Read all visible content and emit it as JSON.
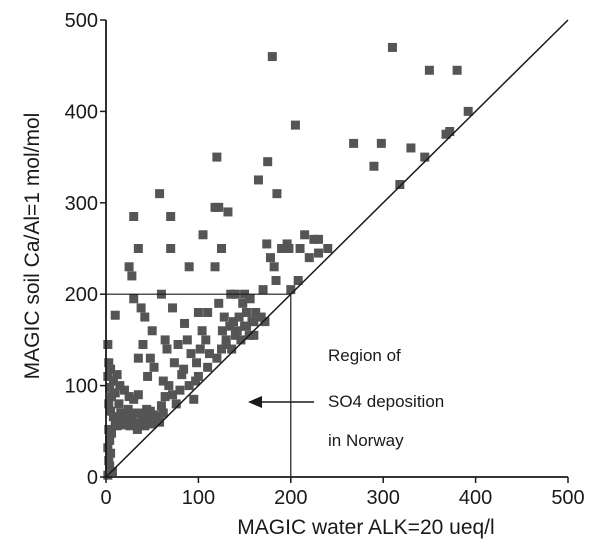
{
  "chart_data": {
    "type": "scatter",
    "xlabel": "MAGIC water ALK=20 ueq/l",
    "ylabel": "MAGIC soil Ca/Al=1 mol/mol",
    "xlim": [
      0,
      500
    ],
    "ylim": [
      0,
      500
    ],
    "xticks": [
      0,
      100,
      200,
      300,
      400,
      500
    ],
    "yticks": [
      0,
      100,
      200,
      300,
      400,
      500
    ],
    "xtick_labels": [
      "0",
      "100",
      "200",
      "300",
      "400",
      "500"
    ],
    "ytick_labels": [
      "0",
      "100",
      "200",
      "300",
      "400",
      "500"
    ],
    "grid": false,
    "legend": "none",
    "reference_line": {
      "type": "1:1",
      "from": [
        0,
        0
      ],
      "to": [
        500,
        500
      ]
    },
    "threshold_lines": {
      "x": 200,
      "y": 200
    },
    "annotation": {
      "lines": [
        "Region of",
        "SO4 deposition",
        "in Norway"
      ],
      "arrow_direction": "left"
    },
    "series": [
      {
        "marker": "square",
        "color": "#555555",
        "points": [
          [
            2,
            145
          ],
          [
            3,
            125
          ],
          [
            5,
            118
          ],
          [
            2,
            110
          ],
          [
            4,
            98
          ],
          [
            6,
            88
          ],
          [
            3,
            80
          ],
          [
            5,
            72
          ],
          [
            8,
            66
          ],
          [
            10,
            60
          ],
          [
            12,
            56
          ],
          [
            3,
            52
          ],
          [
            6,
            48
          ],
          [
            4,
            40
          ],
          [
            2,
            32
          ],
          [
            5,
            26
          ],
          [
            3,
            18
          ],
          [
            4,
            12
          ],
          [
            7,
            6
          ],
          [
            2,
            2
          ],
          [
            10,
            92
          ],
          [
            14,
            80
          ],
          [
            16,
            70
          ],
          [
            18,
            62
          ],
          [
            20,
            58
          ],
          [
            22,
            66
          ],
          [
            24,
            74
          ],
          [
            26,
            56
          ],
          [
            28,
            62
          ],
          [
            30,
            70
          ],
          [
            32,
            58
          ],
          [
            34,
            52
          ],
          [
            38,
            60
          ],
          [
            40,
            68
          ],
          [
            42,
            56
          ],
          [
            45,
            64
          ],
          [
            48,
            72
          ],
          [
            50,
            58
          ],
          [
            55,
            66
          ],
          [
            58,
            60
          ],
          [
            62,
            70
          ],
          [
            15,
            100
          ],
          [
            20,
            95
          ],
          [
            25,
            88
          ],
          [
            30,
            85
          ],
          [
            35,
            90
          ],
          [
            8,
            105
          ],
          [
            12,
            112
          ],
          [
            10,
            177
          ],
          [
            25,
            230
          ],
          [
            28,
            220
          ],
          [
            30,
            195
          ],
          [
            30,
            285
          ],
          [
            35,
            250
          ],
          [
            35,
            130
          ],
          [
            38,
            185
          ],
          [
            40,
            145
          ],
          [
            42,
            175
          ],
          [
            45,
            110
          ],
          [
            48,
            130
          ],
          [
            50,
            160
          ],
          [
            52,
            120
          ],
          [
            58,
            310
          ],
          [
            60,
            200
          ],
          [
            62,
            105
          ],
          [
            64,
            150
          ],
          [
            66,
            140
          ],
          [
            70,
            250
          ],
          [
            70,
            285
          ],
          [
            72,
            185
          ],
          [
            74,
            125
          ],
          [
            78,
            145
          ],
          [
            80,
            95
          ],
          [
            82,
            112
          ],
          [
            85,
            168
          ],
          [
            88,
            150
          ],
          [
            90,
            230
          ],
          [
            92,
            135
          ],
          [
            95,
            85
          ],
          [
            97,
            105
          ],
          [
            98,
            125
          ],
          [
            100,
            180
          ],
          [
            102,
            140
          ],
          [
            104,
            160
          ],
          [
            105,
            265
          ],
          [
            108,
            150
          ],
          [
            110,
            180
          ],
          [
            112,
            135
          ],
          [
            118,
            295
          ],
          [
            118,
            230
          ],
          [
            120,
            350
          ],
          [
            122,
            190
          ],
          [
            122,
            295
          ],
          [
            125,
            140
          ],
          [
            125,
            250
          ],
          [
            126,
            160
          ],
          [
            128,
            175
          ],
          [
            130,
            150
          ],
          [
            132,
            290
          ],
          [
            134,
            165
          ],
          [
            135,
            200
          ],
          [
            136,
            140
          ],
          [
            138,
            170
          ],
          [
            140,
            200
          ],
          [
            142,
            160
          ],
          [
            144,
            175
          ],
          [
            146,
            150
          ],
          [
            148,
            190
          ],
          [
            150,
            165
          ],
          [
            150,
            200
          ],
          [
            152,
            180
          ],
          [
            155,
            155
          ],
          [
            156,
            195
          ],
          [
            158,
            170
          ],
          [
            160,
            155
          ],
          [
            162,
            180
          ],
          [
            165,
            325
          ],
          [
            170,
            205
          ],
          [
            172,
            170
          ],
          [
            174,
            255
          ],
          [
            175,
            345
          ],
          [
            178,
            240
          ],
          [
            180,
            460
          ],
          [
            182,
            230
          ],
          [
            184,
            215
          ],
          [
            185,
            310
          ],
          [
            190,
            250
          ],
          [
            196,
            255
          ],
          [
            198,
            250
          ],
          [
            200,
            205
          ],
          [
            205,
            385
          ],
          [
            208,
            215
          ],
          [
            210,
            250
          ],
          [
            215,
            265
          ],
          [
            220,
            240
          ],
          [
            225,
            260
          ],
          [
            230,
            245
          ],
          [
            230,
            260
          ],
          [
            240,
            250
          ],
          [
            20,
            57
          ],
          [
            22,
            63
          ],
          [
            24,
            60
          ],
          [
            26,
            66
          ],
          [
            28,
            61
          ],
          [
            36,
            70
          ],
          [
            44,
            74
          ],
          [
            52,
            68
          ],
          [
            60,
            78
          ],
          [
            64,
            88
          ],
          [
            68,
            100
          ],
          [
            72,
            90
          ],
          [
            76,
            80
          ],
          [
            84,
            118
          ],
          [
            90,
            100
          ],
          [
            100,
            110
          ],
          [
            110,
            120
          ],
          [
            120,
            130
          ],
          [
            130,
            145
          ],
          [
            140,
            155
          ],
          [
            152,
            165
          ],
          [
            160,
            170
          ],
          [
            168,
            175
          ],
          [
            268,
            365
          ],
          [
            290,
            340
          ],
          [
            298,
            365
          ],
          [
            310,
            470
          ],
          [
            318,
            320
          ],
          [
            330,
            360
          ],
          [
            345,
            350
          ],
          [
            350,
            445
          ],
          [
            368,
            375
          ],
          [
            372,
            378
          ],
          [
            380,
            445
          ],
          [
            392,
            400
          ]
        ]
      }
    ]
  }
}
